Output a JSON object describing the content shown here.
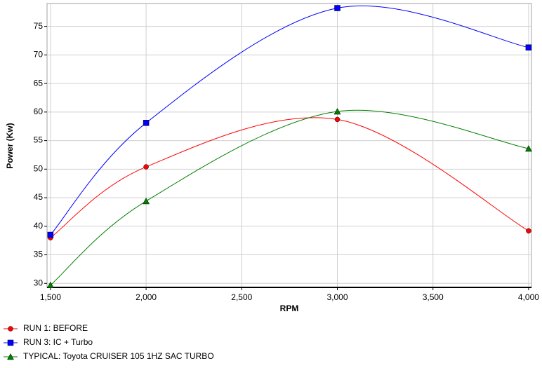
{
  "chart_data": {
    "type": "line",
    "x_label": "RPM",
    "y_label": "Power (Kw)",
    "x": [
      1500,
      2000,
      3000,
      4000
    ],
    "series": [
      {
        "name": "RUN 1: BEFORE",
        "color": "#ff0000",
        "marker": "circle",
        "values": [
          38.0,
          50.4,
          58.7,
          39.2
        ]
      },
      {
        "name": "RUN 3: IC + Turbo",
        "color": "#0000ff",
        "marker": "square",
        "values": [
          38.5,
          58.1,
          78.2,
          71.3
        ]
      },
      {
        "name": "TYPICAL: Toyota CRUISER 105 1HZ SAC TURBO",
        "color": "#008000",
        "marker": "triangle",
        "values": [
          29.7,
          44.4,
          60.1,
          53.6
        ]
      }
    ],
    "xlim": [
      1482,
      4015
    ],
    "ylim": [
      29.3,
      79
    ],
    "xticks": [
      {
        "value": 1500,
        "label": "1,500"
      },
      {
        "value": 2000,
        "label": "2,000"
      },
      {
        "value": 2500,
        "label": "2,500"
      },
      {
        "value": 3000,
        "label": "3,000"
      },
      {
        "value": 3500,
        "label": "3,500"
      },
      {
        "value": 4000,
        "label": "4,000"
      }
    ],
    "yticks": [
      30,
      35,
      40,
      45,
      50,
      55,
      60,
      65,
      70,
      75
    ],
    "grid": true,
    "legend": "bottom"
  }
}
